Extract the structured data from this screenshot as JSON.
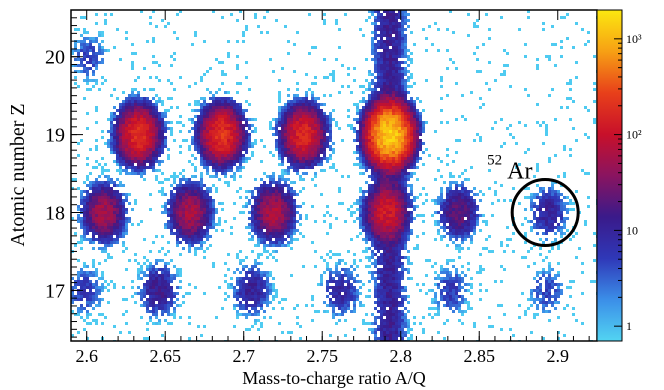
{
  "chart_data": {
    "type": "heatmap",
    "title": "",
    "xlabel": "Mass-to-charge ratio A/Q",
    "ylabel": "Atomic number Z",
    "xlim": [
      2.59,
      2.925
    ],
    "ylim": [
      16.35,
      20.6
    ],
    "x_ticks": [
      2.6,
      2.65,
      2.7,
      2.75,
      2.8,
      2.85,
      2.9
    ],
    "x_tick_labels": [
      "2.6",
      "2.65",
      "2.7",
      "2.75",
      "2.8",
      "2.85",
      "2.9"
    ],
    "y_ticks": [
      17,
      18,
      19,
      20
    ],
    "y_tick_labels": [
      "17",
      "18",
      "19",
      "20"
    ],
    "grid": false,
    "colorbar": {
      "scale": "log",
      "range": [
        0.7,
        2000
      ],
      "ticks": [
        1,
        10,
        100,
        1000
      ],
      "tick_labels": [
        "1",
        "10",
        "10²",
        "10³"
      ],
      "colors": [
        "#52d4f2",
        "#3b8ee8",
        "#2f38b8",
        "#3a1a8a",
        "#8a1460",
        "#c8102a",
        "#e8401a",
        "#f7a014",
        "#fce810"
      ]
    },
    "clusters": [
      {
        "x": 2.793,
        "z": 19,
        "counts": 1500
      },
      {
        "x": 2.791,
        "z": 18,
        "counts": 120
      },
      {
        "x": 2.633,
        "z": 19,
        "counts": 200
      },
      {
        "x": 2.686,
        "z": 19,
        "counts": 220
      },
      {
        "x": 2.738,
        "z": 19,
        "counts": 180
      },
      {
        "x": 2.611,
        "z": 18,
        "counts": 60
      },
      {
        "x": 2.666,
        "z": 18,
        "counts": 65
      },
      {
        "x": 2.719,
        "z": 18,
        "counts": 70
      },
      {
        "x": 2.837,
        "z": 18,
        "counts": 25
      },
      {
        "x": 2.894,
        "z": 18,
        "counts": 12
      },
      {
        "x": 2.646,
        "z": 17,
        "counts": 15
      },
      {
        "x": 2.705,
        "z": 17,
        "counts": 12
      },
      {
        "x": 2.762,
        "z": 17,
        "counts": 10
      },
      {
        "x": 2.599,
        "z": 17,
        "counts": 6
      },
      {
        "x": 2.832,
        "z": 17,
        "counts": 6
      },
      {
        "x": 2.893,
        "z": 17,
        "counts": 5
      },
      {
        "x": 2.601,
        "z": 20,
        "counts": 5
      }
    ],
    "vertical_band": {
      "x": 2.793,
      "z_range": [
        16.35,
        20.6
      ],
      "counts": 12
    },
    "annotation": {
      "mass_number": "52",
      "element": "Ar",
      "circle_center": {
        "x": 2.892,
        "z": 18
      }
    }
  }
}
